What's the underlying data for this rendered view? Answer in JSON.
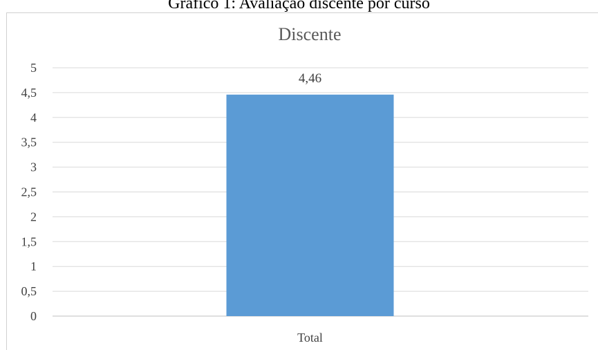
{
  "caption": "Gráfico 1: Avaliação discente por curso",
  "chart_data": {
    "type": "bar",
    "title": "Discente",
    "xlabel": "",
    "ylabel": "",
    "categories": [
      "Total"
    ],
    "values": [
      4.46
    ],
    "data_labels": [
      "4,46"
    ],
    "ylim": [
      0,
      5
    ],
    "y_ticks": [
      0,
      0.5,
      1,
      1.5,
      2,
      2.5,
      3,
      3.5,
      4,
      4.5,
      5
    ],
    "y_tick_labels": [
      "0",
      "0,5",
      "1",
      "1,5",
      "2",
      "2,5",
      "3",
      "3,5",
      "4",
      "4,5",
      "5"
    ],
    "grid": true,
    "legend": "none",
    "bar_color": "#5b9bd5",
    "grid_color": "#d9d9d9"
  }
}
